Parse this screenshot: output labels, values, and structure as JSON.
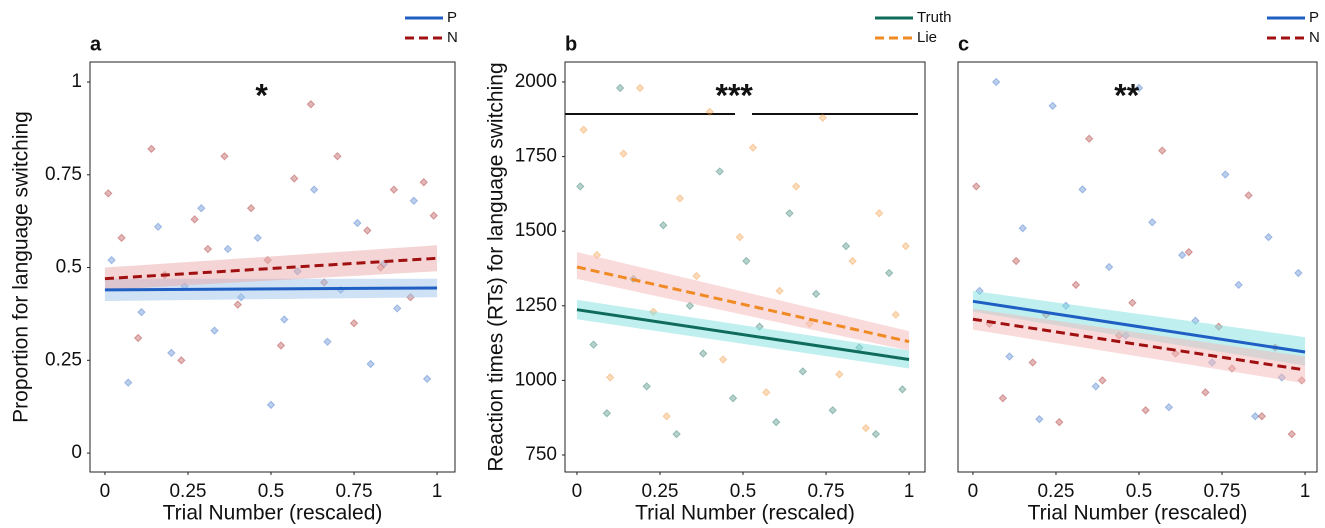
{
  "chart_data": [
    {
      "type": "scatter",
      "panel_label": "a",
      "annotation": "*",
      "xlabel": "Trial Number (rescaled)",
      "ylabel": "Proportion for language switching",
      "xlim": [
        -0.045,
        1.054
      ],
      "ylim": [
        -0.051,
        1.054
      ],
      "xticks": [
        0,
        0.25,
        0.5,
        0.75,
        1
      ],
      "yticks": [
        0,
        0.25,
        0.5,
        0.75,
        1
      ],
      "series": [
        {
          "name": "P",
          "color": "#1f5fc4",
          "band_color": "#9fc3ea",
          "dash": "solid",
          "x": [
            0.02,
            0.07,
            0.11,
            0.16,
            0.2,
            0.24,
            0.29,
            0.33,
            0.37,
            0.41,
            0.46,
            0.5,
            0.54,
            0.58,
            0.63,
            0.67,
            0.71,
            0.76,
            0.8,
            0.84,
            0.88,
            0.93,
            0.97
          ],
          "values": [
            0.52,
            0.19,
            0.38,
            0.61,
            0.27,
            0.45,
            0.66,
            0.33,
            0.55,
            0.42,
            0.58,
            0.13,
            0.36,
            0.49,
            0.71,
            0.3,
            0.44,
            0.62,
            0.24,
            0.51,
            0.39,
            0.68,
            0.2
          ],
          "fit_x": [
            0,
            1
          ],
          "fit_values": [
            0.44,
            0.445
          ],
          "band_lower": [
            0.41,
            0.42
          ],
          "band_upper": [
            0.47,
            0.47
          ]
        },
        {
          "name": "N",
          "color": "#a01010",
          "band_color": "#e9a9a9",
          "dash": "dashed",
          "x": [
            0.01,
            0.05,
            0.1,
            0.14,
            0.18,
            0.23,
            0.27,
            0.31,
            0.36,
            0.4,
            0.44,
            0.49,
            0.53,
            0.57,
            0.62,
            0.66,
            0.7,
            0.75,
            0.79,
            0.83,
            0.87,
            0.92,
            0.96,
            0.99
          ],
          "values": [
            0.7,
            0.58,
            0.31,
            0.82,
            0.48,
            0.25,
            0.63,
            0.55,
            0.8,
            0.4,
            0.66,
            0.52,
            0.29,
            0.74,
            0.94,
            0.46,
            0.8,
            0.35,
            0.6,
            0.5,
            0.71,
            0.42,
            0.73,
            0.64
          ],
          "fit_x": [
            0,
            1
          ],
          "fit_values": [
            0.47,
            0.525
          ],
          "band_lower": [
            0.44,
            0.49
          ],
          "band_upper": [
            0.5,
            0.56
          ]
        }
      ]
    },
    {
      "type": "scatter",
      "panel_label": "b",
      "annotation": "***",
      "xlabel": "Trial Number (rescaled)",
      "ylabel": "Reaction times (RTs) for language switching",
      "xlim": [
        -0.036,
        1.048
      ],
      "ylim": [
        693,
        2067
      ],
      "xticks": [
        0,
        0.25,
        0.5,
        0.75,
        1
      ],
      "yticks": [
        750,
        1000,
        1250,
        1500,
        1750,
        2000
      ],
      "series": [
        {
          "name": "Truth",
          "color": "#0f6b5a",
          "band_color": "#7fe0e0",
          "dash": "solid",
          "x": [
            0.01,
            0.05,
            0.09,
            0.13,
            0.17,
            0.21,
            0.26,
            0.3,
            0.34,
            0.38,
            0.43,
            0.47,
            0.51,
            0.55,
            0.6,
            0.64,
            0.68,
            0.72,
            0.77,
            0.81,
            0.85,
            0.9,
            0.94,
            0.98
          ],
          "values": [
            1650,
            1120,
            890,
            1980,
            1340,
            980,
            1520,
            820,
            1250,
            1090,
            1700,
            940,
            1400,
            1180,
            860,
            1560,
            1030,
            1290,
            900,
            1450,
            1110,
            820,
            1360,
            970
          ],
          "fit_x": [
            0,
            1
          ],
          "fit_values": [
            1237,
            1070
          ],
          "band_lower": [
            1205,
            1040
          ],
          "band_upper": [
            1270,
            1100
          ]
        },
        {
          "name": "Lie",
          "color": "#f08a24",
          "band_color": "#f5b8b8",
          "dash": "dashed",
          "x": [
            0.02,
            0.06,
            0.1,
            0.14,
            0.19,
            0.23,
            0.27,
            0.31,
            0.36,
            0.4,
            0.44,
            0.49,
            0.53,
            0.57,
            0.61,
            0.66,
            0.7,
            0.74,
            0.79,
            0.83,
            0.87,
            0.91,
            0.96,
            0.99
          ],
          "values": [
            1840,
            1420,
            1010,
            1760,
            1980,
            1230,
            880,
            1610,
            1350,
            1900,
            1070,
            1480,
            1780,
            960,
            1300,
            1650,
            1190,
            1880,
            1020,
            1400,
            840,
            1560,
            1220,
            1450
          ],
          "fit_x": [
            0,
            1
          ],
          "fit_values": [
            1380,
            1130
          ],
          "band_lower": [
            1340,
            1100
          ],
          "band_upper": [
            1430,
            1165
          ]
        }
      ]
    },
    {
      "type": "scatter",
      "panel_label": "c",
      "annotation": "**",
      "xlabel": "Trial Number (rescaled)",
      "xlim": [
        -0.045,
        1.036
      ],
      "ylim": [
        693,
        2067
      ],
      "xticks": [
        0,
        0.25,
        0.5,
        0.75,
        1
      ],
      "series": [
        {
          "name": "P",
          "color": "#1f5fc4",
          "band_color": "#7fe0e0",
          "dash": "solid",
          "x": [
            0.02,
            0.07,
            0.11,
            0.15,
            0.2,
            0.24,
            0.28,
            0.33,
            0.37,
            0.41,
            0.46,
            0.5,
            0.54,
            0.59,
            0.63,
            0.67,
            0.72,
            0.76,
            0.8,
            0.85,
            0.89,
            0.93,
            0.98
          ],
          "values": [
            1300,
            2000,
            1080,
            1510,
            870,
            1920,
            1250,
            1640,
            980,
            1380,
            1150,
            1980,
            1530,
            910,
            1420,
            1200,
            1060,
            1690,
            1320,
            880,
            1480,
            1010,
            1360
          ],
          "fit_x": [
            0,
            1
          ],
          "fit_values": [
            1265,
            1095
          ],
          "band_lower": [
            1230,
            1050
          ],
          "band_upper": [
            1300,
            1145
          ]
        },
        {
          "name": "N",
          "color": "#a01010",
          "band_color": "#f5b8b8",
          "dash": "dashed",
          "x": [
            0.01,
            0.05,
            0.09,
            0.13,
            0.18,
            0.22,
            0.26,
            0.31,
            0.35,
            0.39,
            0.44,
            0.48,
            0.52,
            0.57,
            0.61,
            0.65,
            0.7,
            0.74,
            0.78,
            0.83,
            0.87,
            0.91,
            0.96,
            0.99
          ],
          "values": [
            1650,
            1190,
            940,
            1400,
            1060,
            1220,
            860,
            1320,
            1810,
            1000,
            1150,
            1260,
            900,
            1770,
            1090,
            1430,
            960,
            1180,
            1040,
            1620,
            880,
            1110,
            820,
            1000
          ],
          "fit_x": [
            0,
            1
          ],
          "fit_values": [
            1205,
            1035
          ],
          "band_lower": [
            1170,
            990
          ],
          "band_upper": [
            1240,
            1080
          ]
        }
      ]
    }
  ]
}
